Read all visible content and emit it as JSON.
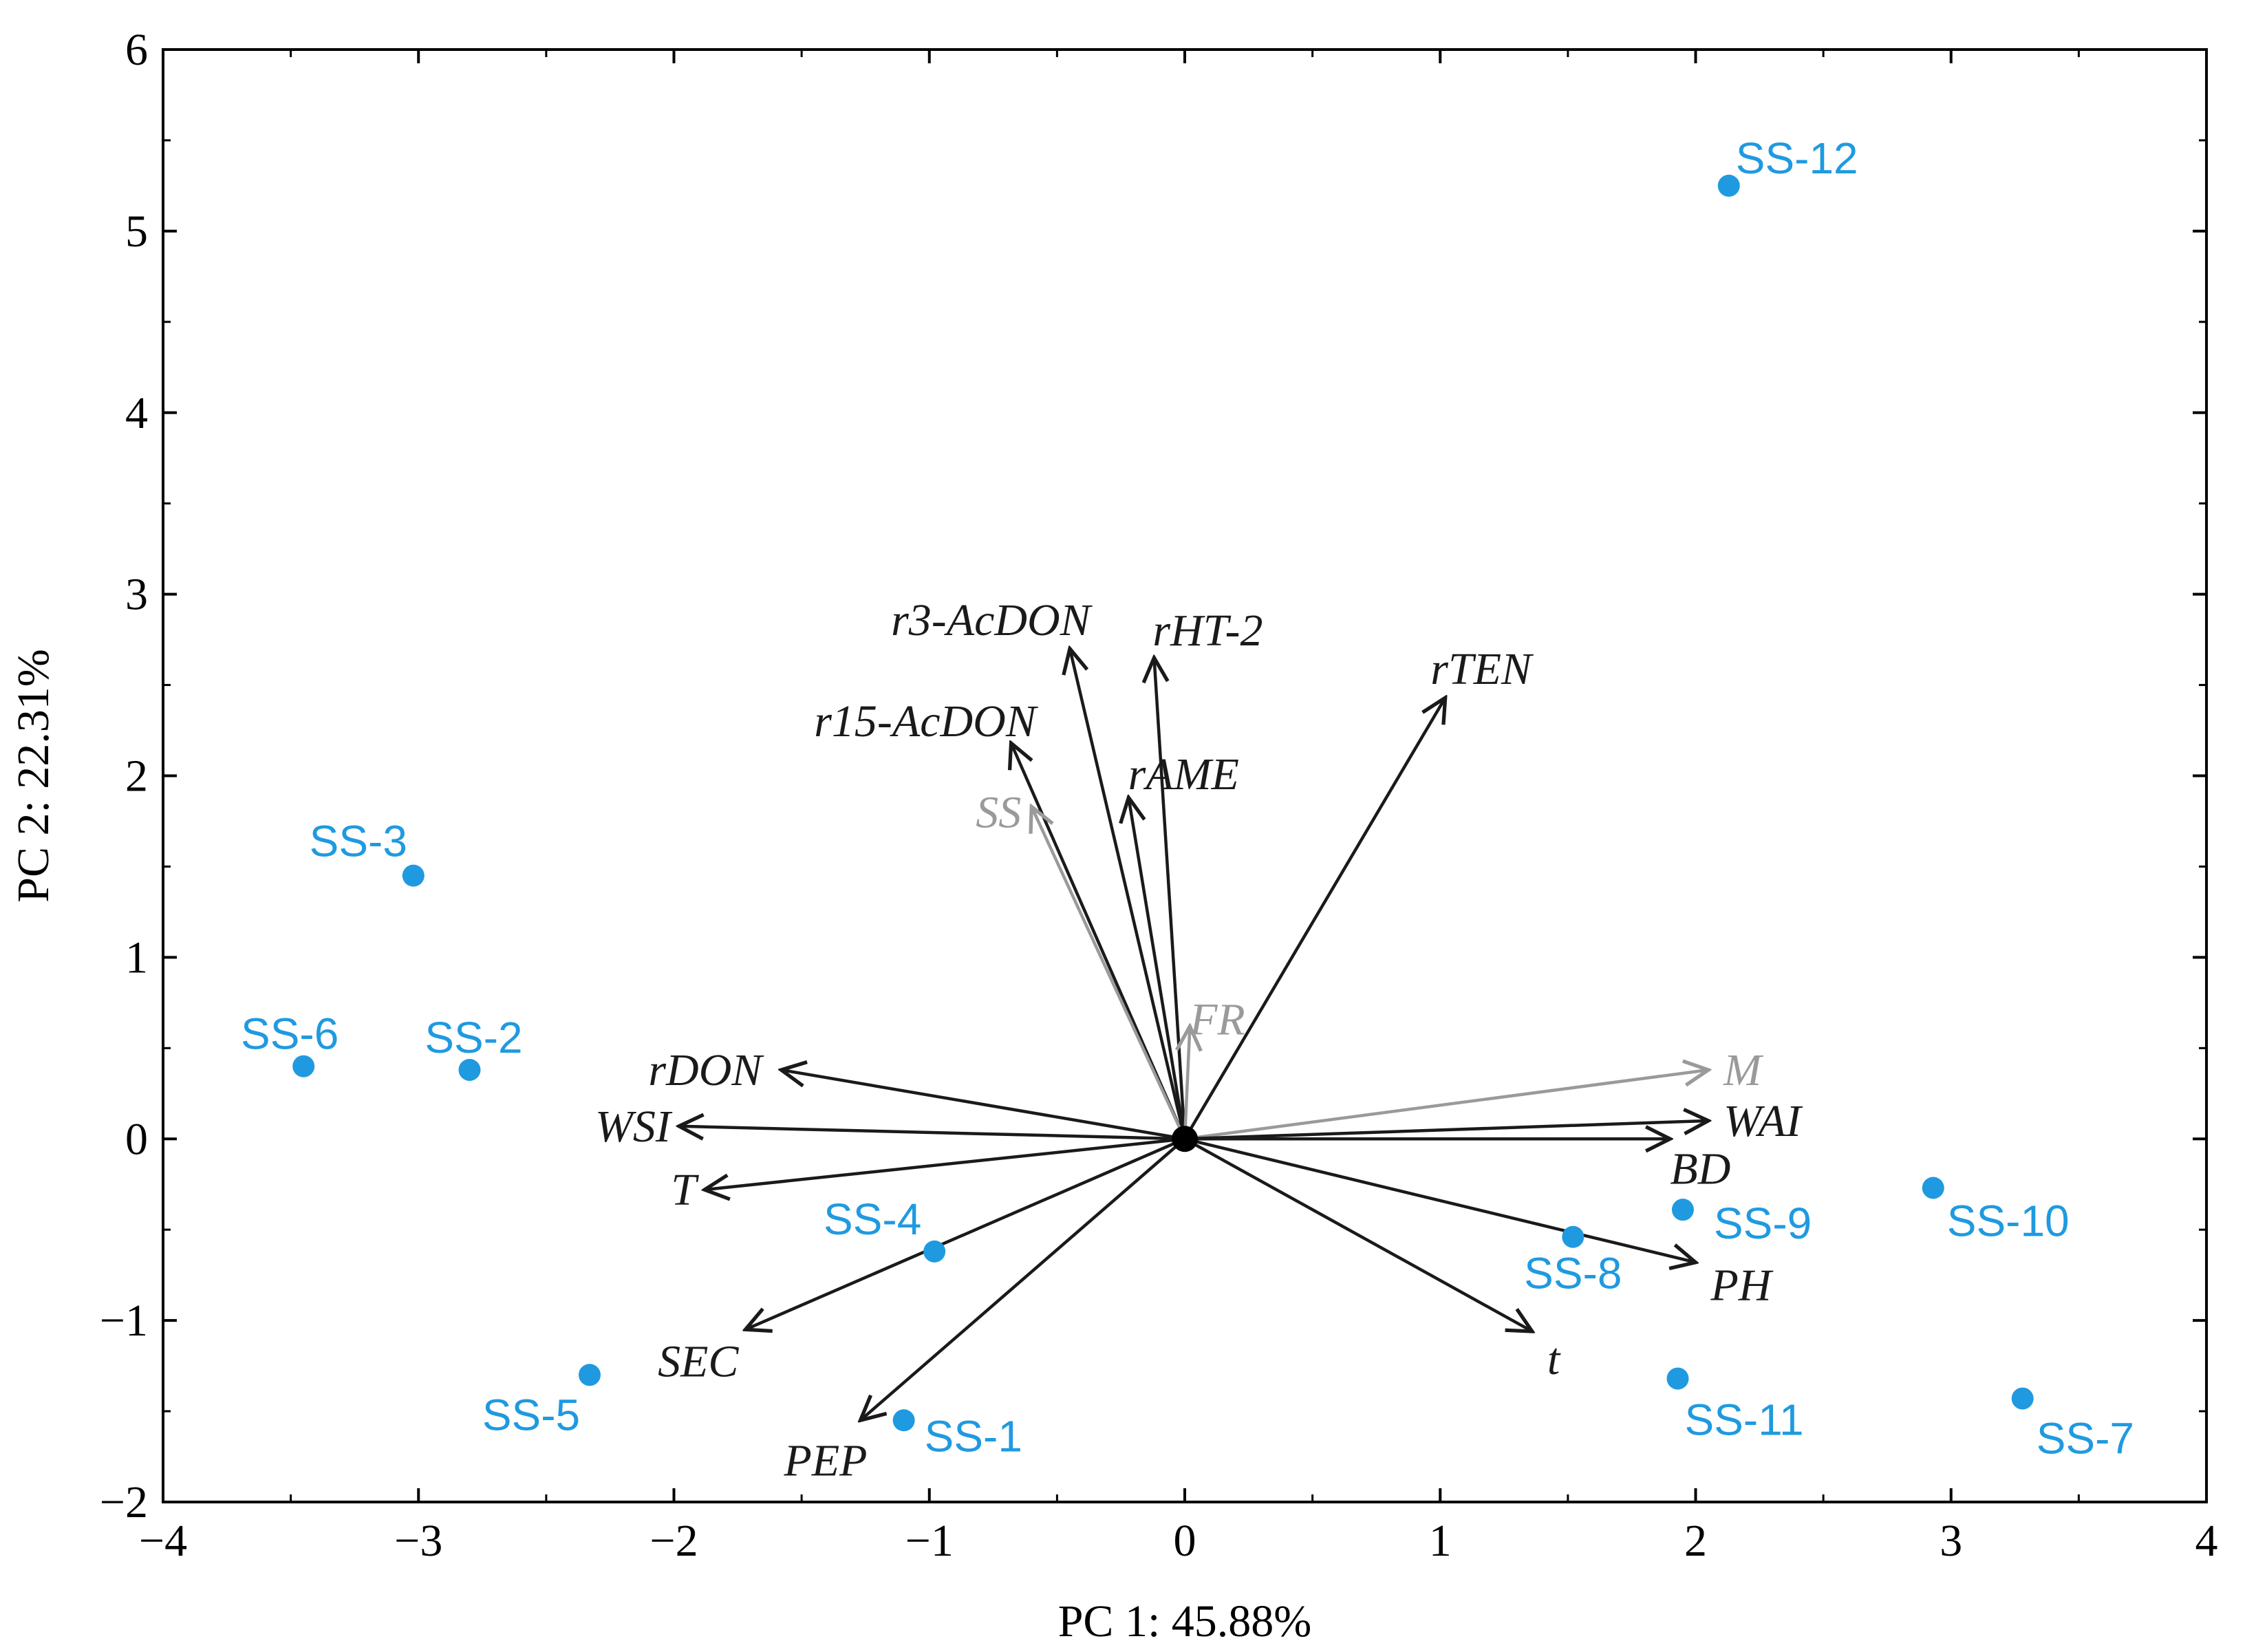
{
  "chart_data": {
    "type": "scatter",
    "subtype": "pca-biplot",
    "xlabel": "PC 1: 45.88%",
    "ylabel": "PC 2: 22.31%",
    "xlim": [
      -4,
      4
    ],
    "ylim": [
      -2,
      6
    ],
    "x_ticks": [
      -4,
      -3,
      -2,
      -1,
      0,
      1,
      2,
      3,
      4
    ],
    "y_ticks": [
      -2,
      -1,
      0,
      1,
      2,
      3,
      4,
      5,
      6
    ],
    "x_tick_labels": [
      "−4",
      "−3",
      "−2",
      "−1",
      "0",
      "1",
      "2",
      "3",
      "4"
    ],
    "y_tick_labels": [
      "−2",
      "−1",
      "0",
      "1",
      "2",
      "3",
      "4",
      "5",
      "6"
    ],
    "grid": false,
    "colors": {
      "point": "#1f9ae0",
      "vector": "#1a1a1a",
      "vector_supplementary": "#9a9a9a",
      "axis": "#000000"
    },
    "samples": [
      {
        "label": "SS-1",
        "x": -1.1,
        "y": -1.55
      },
      {
        "label": "SS-2",
        "x": -2.8,
        "y": 0.38
      },
      {
        "label": "SS-3",
        "x": -3.02,
        "y": 1.45
      },
      {
        "label": "SS-4",
        "x": -0.98,
        "y": -0.62
      },
      {
        "label": "SS-5",
        "x": -2.33,
        "y": -1.3
      },
      {
        "label": "SS-6",
        "x": -3.45,
        "y": 0.4
      },
      {
        "label": "SS-7",
        "x": 3.28,
        "y": -1.43
      },
      {
        "label": "SS-8",
        "x": 1.52,
        "y": -0.54
      },
      {
        "label": "SS-9",
        "x": 1.95,
        "y": -0.39
      },
      {
        "label": "SS-10",
        "x": 2.93,
        "y": -0.27
      },
      {
        "label": "SS-11",
        "x": 1.93,
        "y": -1.32
      },
      {
        "label": "SS-12",
        "x": 2.13,
        "y": 5.25
      }
    ],
    "vectors": [
      {
        "label": "r3-AcDON",
        "x": -0.45,
        "y": 2.7,
        "supplementary": false
      },
      {
        "label": "rHT-2",
        "x": -0.12,
        "y": 2.65,
        "supplementary": false
      },
      {
        "label": "rTEN",
        "x": 1.02,
        "y": 2.43,
        "supplementary": false
      },
      {
        "label": "r15-AcDON",
        "x": -0.68,
        "y": 2.18,
        "supplementary": false
      },
      {
        "label": "rAME",
        "x": -0.22,
        "y": 1.88,
        "supplementary": false
      },
      {
        "label": "SS",
        "x": -0.6,
        "y": 1.83,
        "supplementary": true
      },
      {
        "label": "FR",
        "x": 0.02,
        "y": 0.62,
        "supplementary": true
      },
      {
        "label": "M",
        "x": 2.05,
        "y": 0.38,
        "supplementary": true
      },
      {
        "label": "rDON",
        "x": -1.58,
        "y": 0.38,
        "supplementary": false
      },
      {
        "label": "WSI",
        "x": -1.98,
        "y": 0.07,
        "supplementary": false
      },
      {
        "label": "WAI",
        "x": 2.05,
        "y": 0.1,
        "supplementary": false
      },
      {
        "label": "BD",
        "x": 1.9,
        "y": 0.0,
        "supplementary": false
      },
      {
        "label": "T",
        "x": -1.88,
        "y": -0.28,
        "supplementary": false
      },
      {
        "label": "PH",
        "x": 2.0,
        "y": -0.68,
        "supplementary": false
      },
      {
        "label": "t",
        "x": 1.36,
        "y": -1.06,
        "supplementary": false
      },
      {
        "label": "SEC",
        "x": -1.72,
        "y": -1.05,
        "supplementary": false
      },
      {
        "label": "PEP",
        "x": -1.27,
        "y": -1.55,
        "supplementary": false
      }
    ]
  }
}
